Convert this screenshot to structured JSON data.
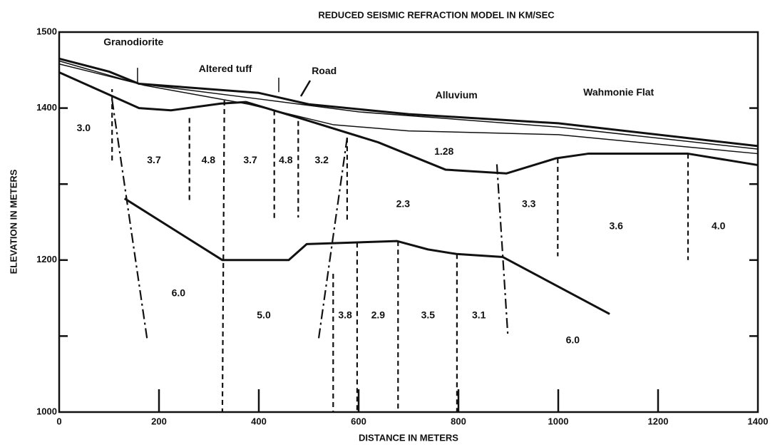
{
  "chart_data": {
    "type": "line",
    "title": "REDUCED SEISMIC REFRACTION MODEL IN KM/SEC",
    "xlabel": "DISTANCE IN METERS",
    "ylabel": "ELEVATION IN METERS",
    "xlim": [
      0,
      1400
    ],
    "ylim": [
      1000,
      1500
    ],
    "xticks": [
      0,
      200,
      400,
      600,
      800,
      1000,
      1200,
      1400
    ],
    "yticks": [
      1000,
      1200,
      1400,
      1500
    ],
    "yminorticks": [
      1100,
      1300
    ],
    "color": "#111111",
    "series": [
      {
        "style": "thick",
        "x": [
          0,
          100,
          160,
          400,
          500,
          700,
          1000,
          1400
        ],
        "y": [
          1465,
          1448,
          1432,
          1420,
          1405,
          1392,
          1380,
          1350
        ]
      },
      {
        "style": "thin",
        "x": [
          0,
          160,
          400,
          600,
          1000,
          1400
        ],
        "y": [
          1458,
          1432,
          1412,
          1395,
          1375,
          1346
        ]
      },
      {
        "style": "thin",
        "x": [
          0,
          170,
          380,
          550,
          700,
          1000,
          1400
        ],
        "y": [
          1462,
          1430,
          1405,
          1378,
          1370,
          1365,
          1340
        ]
      },
      {
        "style": "thick",
        "x": [
          0,
          160,
          224,
          324,
          374,
          481,
          639,
          774,
          896,
          996,
          1060,
          1260,
          1400
        ],
        "y": [
          1447,
          1400,
          1397,
          1406,
          1408,
          1387,
          1355,
          1319,
          1314,
          1334,
          1340,
          1340,
          1325
        ]
      },
      {
        "style": "thick",
        "x": [
          131,
          327,
          460,
          496,
          677,
          739,
          796,
          889,
          1103
        ],
        "y": [
          1281,
          1200,
          1200,
          1221,
          1225,
          1214,
          1208,
          1204,
          1129
        ]
      },
      {
        "style": "thin",
        "x": [
          157,
          157
        ],
        "y": [
          1453,
          1434
        ]
      },
      {
        "style": "thin",
        "x": [
          440,
          440
        ],
        "y": [
          1440,
          1421
        ]
      },
      {
        "style": "dashed",
        "x": [
          106,
          106
        ],
        "y": [
          1331,
          1425
        ]
      },
      {
        "style": "dashdot",
        "x": [
          106,
          176
        ],
        "y": [
          1411,
          1097
        ]
      },
      {
        "style": "dashed",
        "x": [
          261,
          261
        ],
        "y": [
          1387,
          1275
        ]
      },
      {
        "style": "dashed",
        "x": [
          331,
          327
        ],
        "y": [
          1410,
          1000
        ]
      },
      {
        "style": "dashed",
        "x": [
          431,
          431
        ],
        "y": [
          1397,
          1251
        ]
      },
      {
        "style": "dashed",
        "x": [
          479,
          479
        ],
        "y": [
          1383,
          1256
        ]
      },
      {
        "style": "dashdot",
        "x": [
          577,
          520
        ],
        "y": [
          1361,
          1097
        ]
      },
      {
        "style": "dashed",
        "x": [
          577,
          577
        ],
        "y": [
          1361,
          1251
        ]
      },
      {
        "style": "dashed",
        "x": [
          549,
          549
        ],
        "y": [
          1182,
          1000
        ]
      },
      {
        "style": "dashed",
        "x": [
          597,
          597
        ],
        "y": [
          1223,
          1000
        ]
      },
      {
        "style": "dashed",
        "x": [
          679,
          679
        ],
        "y": [
          1225,
          1000
        ]
      },
      {
        "style": "dashed",
        "x": [
          797,
          797
        ],
        "y": [
          1208,
          1000
        ]
      },
      {
        "style": "dashdot",
        "x": [
          877,
          899
        ],
        "y": [
          1326,
          1101
        ]
      },
      {
        "style": "dashed",
        "x": [
          999,
          999
        ],
        "y": [
          1334,
          1205
        ]
      },
      {
        "style": "dashed",
        "x": [
          1260,
          1260
        ],
        "y": [
          1340,
          1200
        ]
      }
    ],
    "annotations": [
      {
        "text": "Granodiorite",
        "x": 149,
        "y": 1486
      },
      {
        "text": "Altered tuff",
        "x": 333,
        "y": 1451
      },
      {
        "text": "Road",
        "x": 531,
        "y": 1448
      },
      {
        "text": "Alluvium",
        "x": 796,
        "y": 1416
      },
      {
        "text": "Wahmonie Flat",
        "x": 1121,
        "y": 1420
      },
      {
        "text": "3.0",
        "x": 49,
        "y": 1373
      },
      {
        "text": "3.7",
        "x": 190,
        "y": 1331
      },
      {
        "text": "4.8",
        "x": 299,
        "y": 1331
      },
      {
        "text": "3.7",
        "x": 383,
        "y": 1331
      },
      {
        "text": "4.8",
        "x": 454,
        "y": 1331
      },
      {
        "text": "3.2",
        "x": 526,
        "y": 1331
      },
      {
        "text": "1.28",
        "x": 771,
        "y": 1342
      },
      {
        "text": "2.3",
        "x": 689,
        "y": 1273
      },
      {
        "text": "3.3",
        "x": 941,
        "y": 1273
      },
      {
        "text": "3.6",
        "x": 1116,
        "y": 1244
      },
      {
        "text": "4.0",
        "x": 1321,
        "y": 1244
      },
      {
        "text": "6.0",
        "x": 239,
        "y": 1156
      },
      {
        "text": "5.0",
        "x": 410,
        "y": 1127
      },
      {
        "text": "3.8",
        "x": 573,
        "y": 1127
      },
      {
        "text": "2.9",
        "x": 639,
        "y": 1127
      },
      {
        "text": "3.5",
        "x": 739,
        "y": 1127
      },
      {
        "text": "3.1",
        "x": 841,
        "y": 1127
      },
      {
        "text": "6.0",
        "x": 1029,
        "y": 1094
      }
    ]
  }
}
